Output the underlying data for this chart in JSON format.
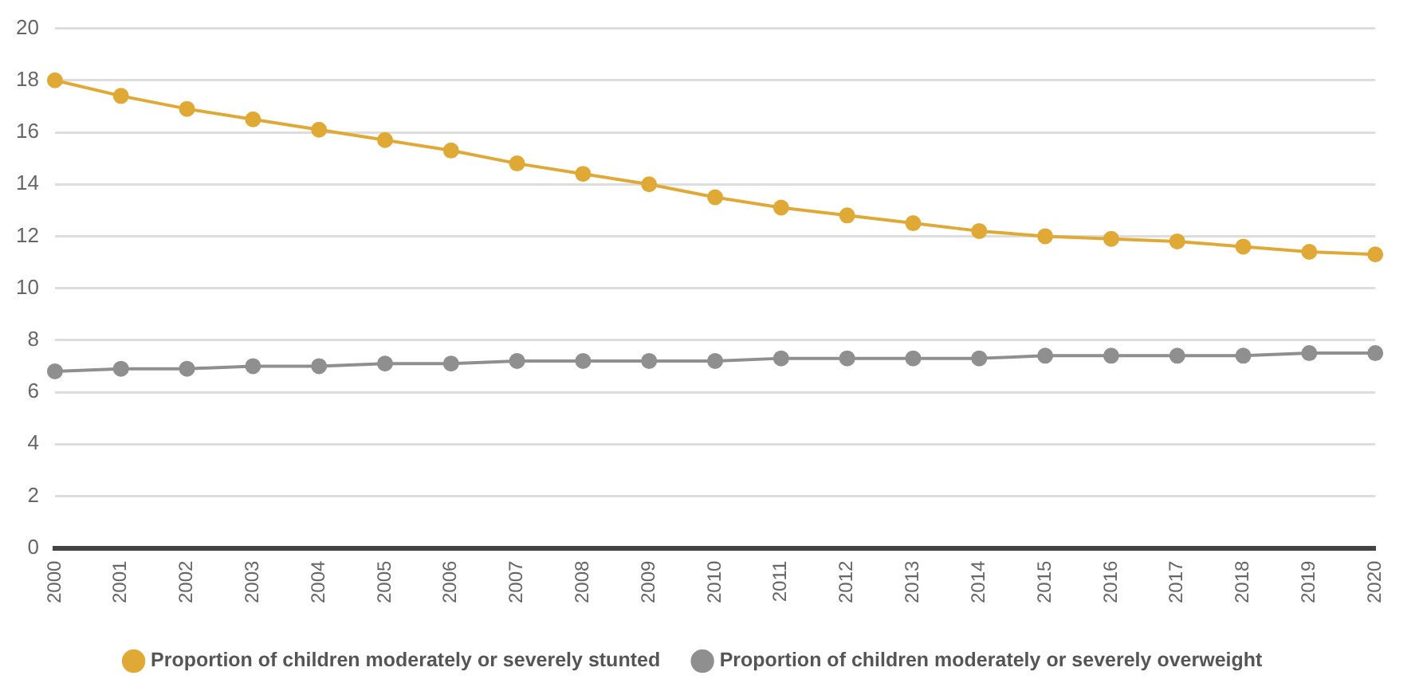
{
  "chart_data": {
    "type": "line",
    "categories": [
      "2000",
      "2001",
      "2002",
      "2003",
      "2004",
      "2005",
      "2006",
      "2007",
      "2008",
      "2009",
      "2010",
      "2011",
      "2012",
      "2013",
      "2014",
      "2015",
      "2016",
      "2017",
      "2018",
      "2019",
      "2020"
    ],
    "series": [
      {
        "name": "Proportion of children moderately or severely stunted",
        "color": "#e0a936",
        "values": [
          18.0,
          17.4,
          16.9,
          16.5,
          16.1,
          15.7,
          15.3,
          14.8,
          14.4,
          14.0,
          13.5,
          13.1,
          12.8,
          12.5,
          12.2,
          12.0,
          11.9,
          11.8,
          11.6,
          11.4,
          11.3
        ]
      },
      {
        "name": "Proportion of children moderately or severely overweight",
        "color": "#8f8f8f",
        "values": [
          6.8,
          6.9,
          6.9,
          7.0,
          7.0,
          7.1,
          7.1,
          7.2,
          7.2,
          7.2,
          7.2,
          7.3,
          7.3,
          7.3,
          7.3,
          7.4,
          7.4,
          7.4,
          7.4,
          7.5,
          7.5
        ]
      }
    ],
    "ylim": [
      0,
      20
    ],
    "yticks": [
      0,
      2,
      4,
      6,
      8,
      10,
      12,
      14,
      16,
      18,
      20
    ],
    "grid": "y",
    "legend": "bottom",
    "marker": "circle",
    "line_style": "solid"
  }
}
